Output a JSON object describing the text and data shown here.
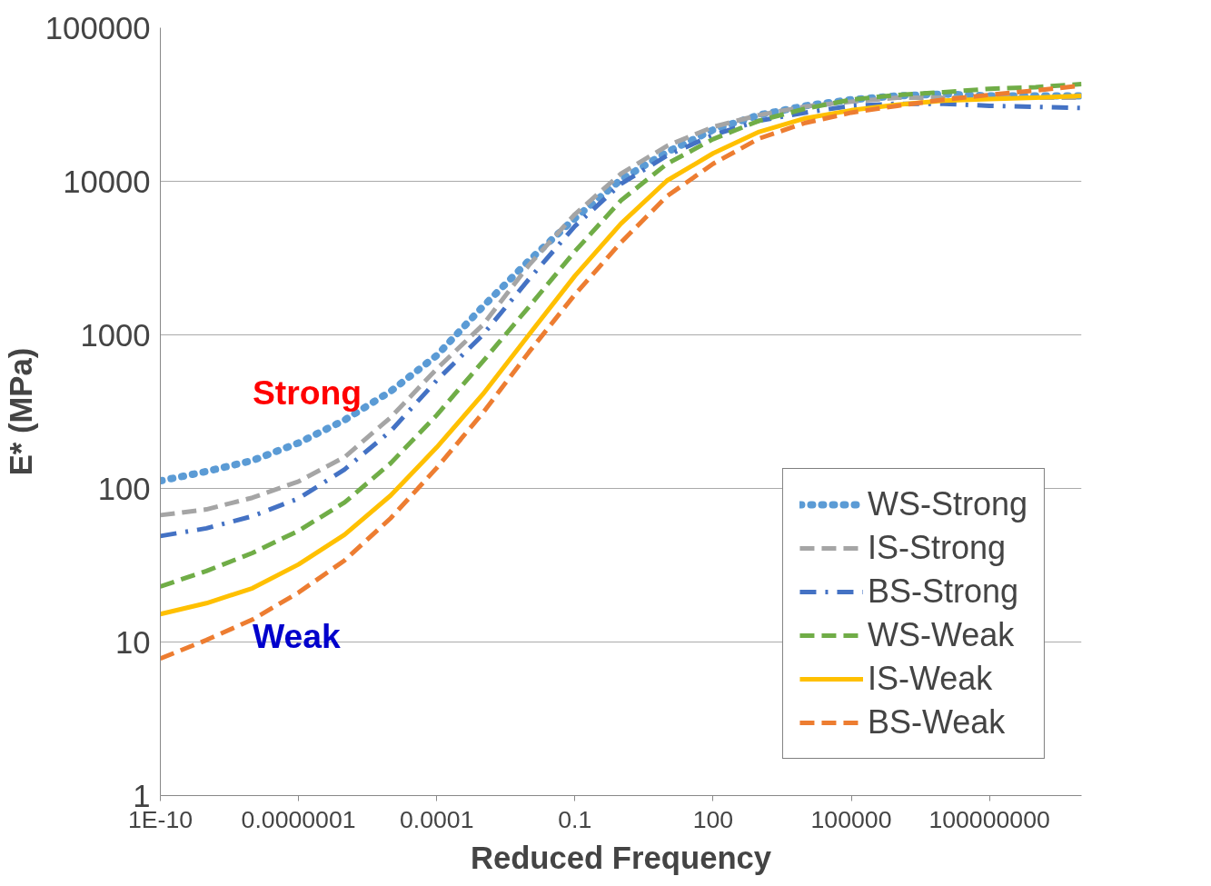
{
  "chart_data": {
    "type": "line",
    "xlabel": "Reduced Frequency",
    "ylabel": "E* (MPa)",
    "log": "xy",
    "grid": "y",
    "legend": "bottom right",
    "xlim": [
      1e-10,
      10000000000.0
    ],
    "ylim": [
      1,
      100000
    ],
    "xticks": [
      {
        "value": 1e-10,
        "label": "1E-10"
      },
      {
        "value": 1e-07,
        "label": "0.0000001"
      },
      {
        "value": 0.0001,
        "label": "0.0001"
      },
      {
        "value": 0.1,
        "label": "0.1"
      },
      {
        "value": 100,
        "label": "100"
      },
      {
        "value": 100000,
        "label": "100000"
      },
      {
        "value": 100000000,
        "label": "100000000"
      }
    ],
    "yticks": [
      1,
      10,
      100,
      1000,
      10000,
      100000
    ],
    "x": [
      1e-10,
      1e-09,
      1e-08,
      1e-07,
      1e-06,
      1e-05,
      0.0001,
      0.001,
      0.01,
      0.1,
      1,
      10,
      100,
      1000.0,
      10000.0,
      100000.0,
      1000000.0,
      10000000.0,
      100000000.0,
      1000000000.0,
      10000000000.0
    ],
    "series": [
      {
        "name": "WS-Strong",
        "color": "#5b9bd5",
        "line_style": "dotted",
        "values": [
          112,
          129,
          152,
          198,
          279,
          429,
          734,
          1525,
          3040,
          5740,
          10250,
          15500,
          21600,
          27000,
          31000,
          34000,
          36000,
          37000,
          36000,
          36000,
          36000
        ]
      },
      {
        "name": "IS-Strong",
        "color": "#a5a5a5",
        "line_style": "dashed",
        "values": [
          67,
          73,
          87,
          111,
          160,
          290,
          600,
          1160,
          2840,
          6100,
          11200,
          17000,
          22600,
          27000,
          30700,
          33000,
          35000,
          35000,
          35000,
          35000,
          35000
        ]
      },
      {
        "name": "BS-Strong",
        "color": "#4472c4",
        "line_style": "dashdot",
        "values": [
          49,
          55,
          66,
          86,
          133,
          236,
          505,
          1000,
          2300,
          5100,
          9600,
          14700,
          20000,
          24800,
          28000,
          31000,
          32000,
          32000,
          31000,
          30500,
          30000
        ]
      },
      {
        "name": "WS-Weak",
        "color": "#70ad47",
        "line_style": "dashed",
        "values": [
          23,
          29,
          38,
          53,
          81,
          146,
          300,
          670,
          1520,
          3500,
          7500,
          13000,
          18800,
          24800,
          29700,
          34000,
          36500,
          38000,
          40000,
          41000,
          43000
        ]
      },
      {
        "name": "IS-Weak",
        "color": "#ffc000",
        "line_style": "solid",
        "values": [
          15.2,
          17.9,
          22.4,
          32,
          50,
          90,
          185,
          410,
          1000,
          2420,
          5300,
          10100,
          15200,
          21000,
          25700,
          29000,
          31500,
          33500,
          34300,
          35000,
          36000
        ]
      },
      {
        "name": "BS-Weak",
        "color": "#ed7d31",
        "line_style": "dashed",
        "values": [
          7.8,
          10.3,
          14,
          21,
          34,
          64,
          136,
          310,
          770,
          1830,
          4000,
          8000,
          13000,
          19000,
          24000,
          28000,
          31000,
          34000,
          36500,
          39000,
          42000
        ]
      }
    ],
    "annotations": [
      "Strong",
      "Weak"
    ]
  }
}
